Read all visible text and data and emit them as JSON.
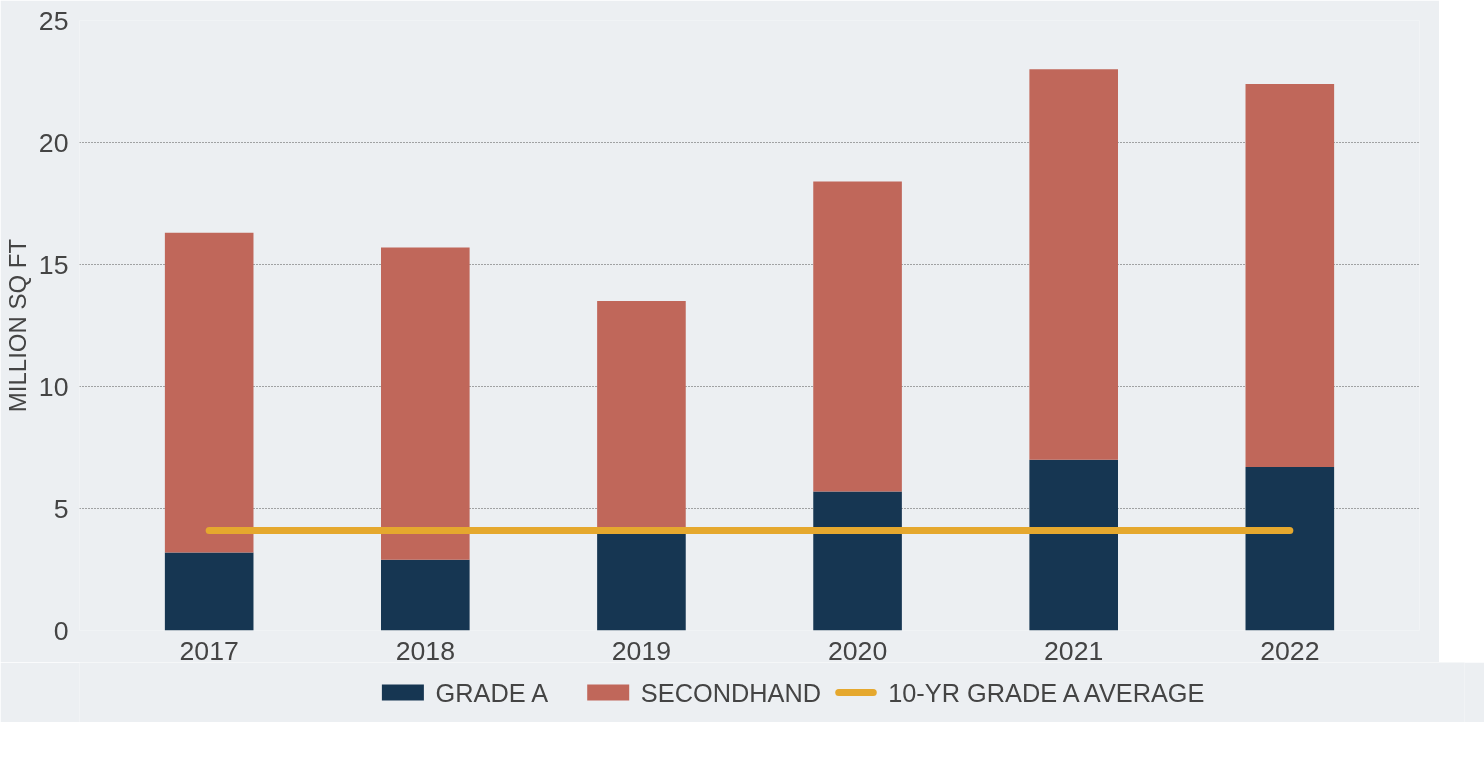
{
  "chart_data": {
    "type": "bar",
    "stacked": true,
    "ylabel": "MILLION SQ FT",
    "categories": [
      "2017",
      "2018",
      "2019",
      "2020",
      "2021",
      "2022"
    ],
    "series": [
      {
        "name": "GRADE A",
        "color": "#163652",
        "values": [
          3.2,
          2.9,
          4.0,
          5.7,
          7.0,
          6.7
        ]
      },
      {
        "name": "SECONDHAND",
        "color": "#c0675a",
        "values": [
          13.1,
          12.8,
          9.5,
          12.7,
          16.0,
          15.7
        ]
      },
      {
        "name": "10-YR GRADE A AVERAGE",
        "type": "line",
        "color": "#e5a82e",
        "values": [
          4.1,
          4.1,
          4.1,
          4.1,
          4.1,
          4.1
        ]
      }
    ],
    "ylim": [
      0,
      25
    ],
    "yticks": [
      0,
      5,
      10,
      15,
      20,
      25
    ],
    "grid": "y",
    "legend": "bottom"
  }
}
